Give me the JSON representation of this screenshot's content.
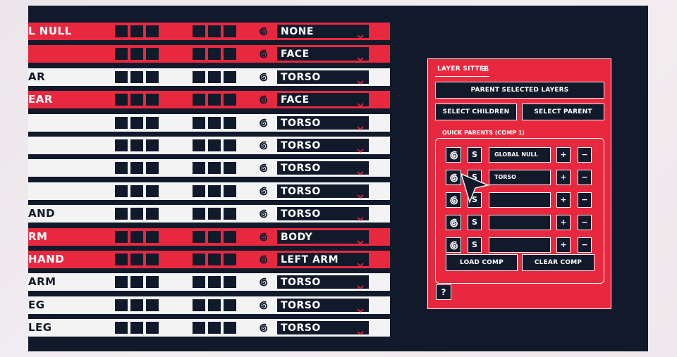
{
  "rows": [
    {
      "name": "L NULL",
      "style": "red",
      "parent": "NONE"
    },
    {
      "name": "",
      "style": "red",
      "parent": "FACE"
    },
    {
      "name": "AR",
      "style": "white",
      "parent": "TORSO"
    },
    {
      "name": "EAR",
      "style": "red",
      "parent": "FACE"
    },
    {
      "name": "",
      "style": "white",
      "parent": "TORSO"
    },
    {
      "name": "",
      "style": "white",
      "parent": "TORSO"
    },
    {
      "name": "",
      "style": "white",
      "parent": "TORSO"
    },
    {
      "name": "",
      "style": "white",
      "parent": "TORSO"
    },
    {
      "name": "AND",
      "style": "white",
      "parent": "TORSO"
    },
    {
      "name": "RM",
      "style": "red",
      "parent": "BODY"
    },
    {
      "name": "HAND",
      "style": "red",
      "parent": "LEFT ARM"
    },
    {
      "name": "ARM",
      "style": "white",
      "parent": "TORSO"
    },
    {
      "name": "EG",
      "style": "white",
      "parent": "TORSO"
    },
    {
      "name": "LEG",
      "style": "white",
      "parent": "TORSO"
    }
  ],
  "panel": {
    "title": "LAYER SITTER",
    "parent_selected": "PARENT SELECTED LAYERS",
    "select_children": "SELECT CHILDREN",
    "select_parent": "SELECT PARENT",
    "quick_parents_label": "QUICK PARENTS (COMP 1)",
    "s_label": "S",
    "plus_label": "+",
    "minus_label": "−",
    "quick_parents": [
      {
        "name": "GLOBAL NULL"
      },
      {
        "name": "TORSO"
      },
      {
        "name": ""
      },
      {
        "name": ""
      },
      {
        "name": ""
      }
    ],
    "load_comp": "LOAD COMP",
    "clear_comp": "CLEAR COMP",
    "help": "?"
  },
  "colors": {
    "accent": "#e8283f",
    "dark": "#111a2b",
    "light": "#f4f3f4"
  }
}
